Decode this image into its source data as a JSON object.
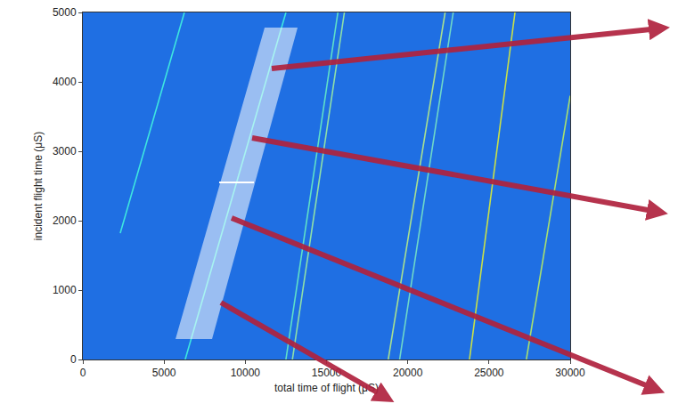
{
  "chart_data": {
    "type": "line",
    "x_label": "total time of flight (μS)",
    "y_label": "incident flight time (μS)",
    "xlim": [
      0,
      30000
    ],
    "ylim": [
      0,
      5000
    ],
    "xticks": [
      0,
      5000,
      10000,
      15000,
      20000,
      25000,
      30000
    ],
    "yticks": [
      0,
      1000,
      2000,
      3000,
      4000,
      5000
    ],
    "grid": false,
    "series": [
      {
        "x": [
          2300,
          6250
        ],
        "y": [
          1820,
          5000
        ],
        "color": "#3ee6e0"
      },
      {
        "x": [
          6300,
          12500
        ],
        "y": [
          0,
          5000
        ],
        "color": "#3ee6e0"
      },
      {
        "x": [
          12500,
          15700
        ],
        "y": [
          0,
          5000
        ],
        "color": "#5fe0c8"
      },
      {
        "x": [
          12900,
          16100
        ],
        "y": [
          0,
          5000
        ],
        "color": "#8fe0a8"
      },
      {
        "x": [
          18800,
          22300
        ],
        "y": [
          0,
          5000
        ],
        "color": "#a8e090"
      },
      {
        "x": [
          19500,
          22800
        ],
        "y": [
          0,
          5000
        ],
        "color": "#6fd8c8"
      },
      {
        "x": [
          23800,
          26600
        ],
        "y": [
          0,
          5000
        ],
        "color": "#c8e048"
      },
      {
        "x": [
          27300,
          30000
        ],
        "y": [
          0,
          3800
        ],
        "color": "#a8e070"
      }
    ],
    "highlight": {
      "x": [
        5705,
        7954,
        13220,
        11190
      ],
      "y": [
        295,
        295,
        4782,
        4782
      ]
    },
    "cut": {
      "x": [
        8390,
        10530
      ],
      "y": [
        2550,
        2550
      ]
    }
  }
}
